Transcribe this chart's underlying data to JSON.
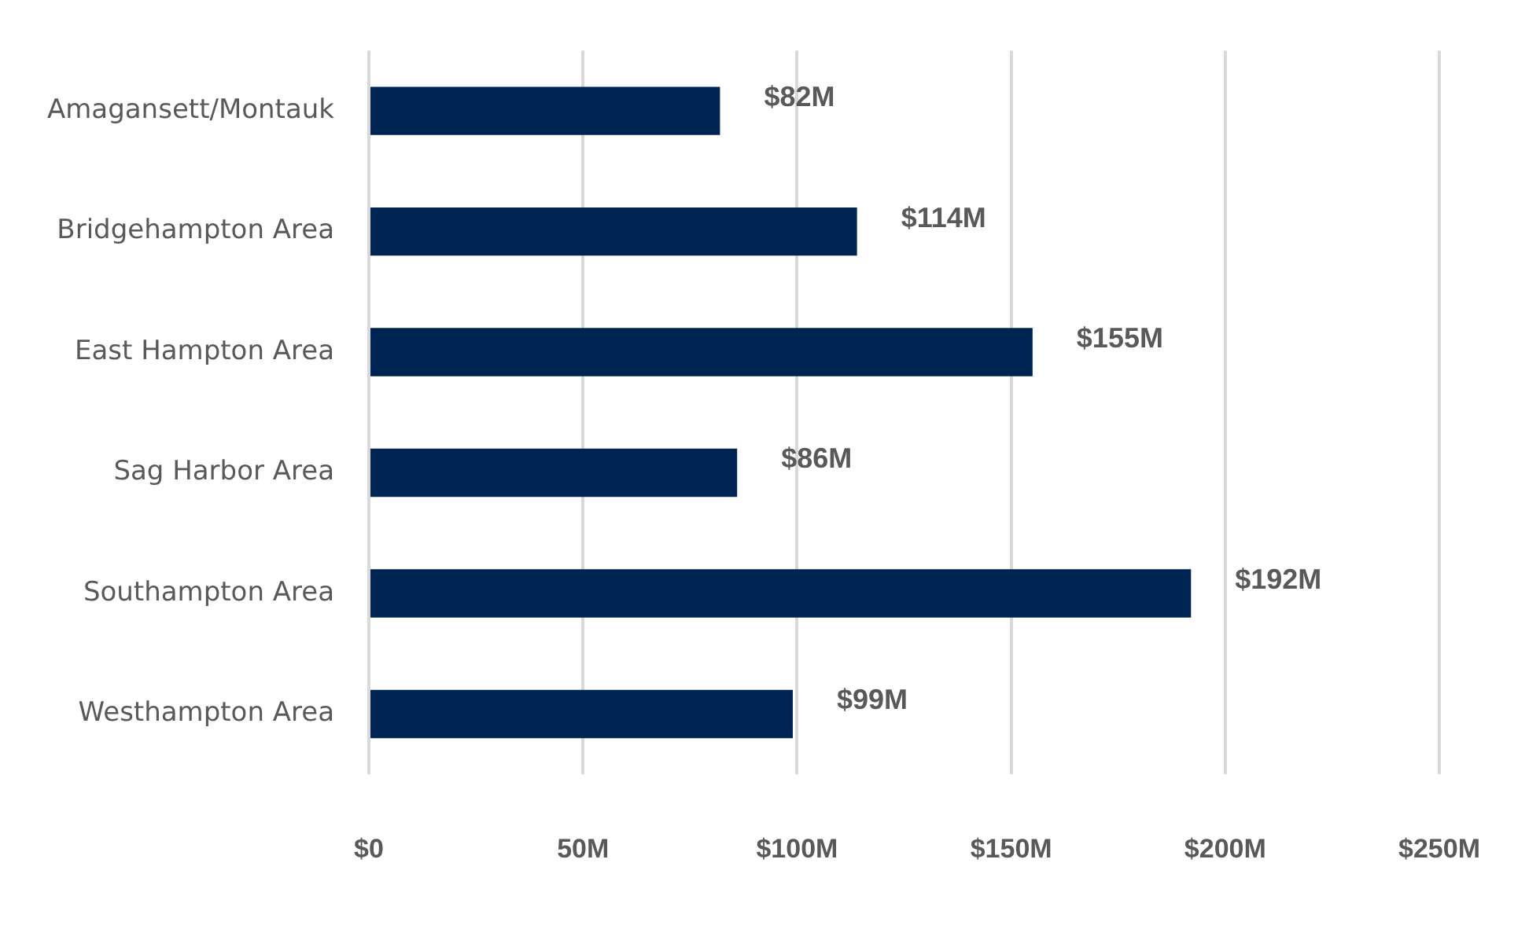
{
  "chart_data": {
    "type": "bar",
    "orientation": "horizontal",
    "categories": [
      "Amagansett/Montauk",
      "Bridgehampton Area",
      "East Hampton Area",
      "Sag Harbor Area",
      "Southampton Area",
      "Westhampton Area"
    ],
    "values": [
      82,
      114,
      155,
      86,
      192,
      99
    ],
    "value_labels": [
      "$82M",
      "$114M",
      "$155M",
      "$86M",
      "$192M",
      "$99M"
    ],
    "color": "#002451",
    "xlim": [
      0,
      250
    ],
    "xticks": [
      {
        "value": 0,
        "label": "$0"
      },
      {
        "value": 50,
        "label": "50M"
      },
      {
        "value": 100,
        "label": "$100M"
      },
      {
        "value": 150,
        "label": "$150M"
      },
      {
        "value": 200,
        "label": "$200M"
      },
      {
        "value": 250,
        "label": "$250M"
      }
    ],
    "grid": "x",
    "legend": false
  }
}
